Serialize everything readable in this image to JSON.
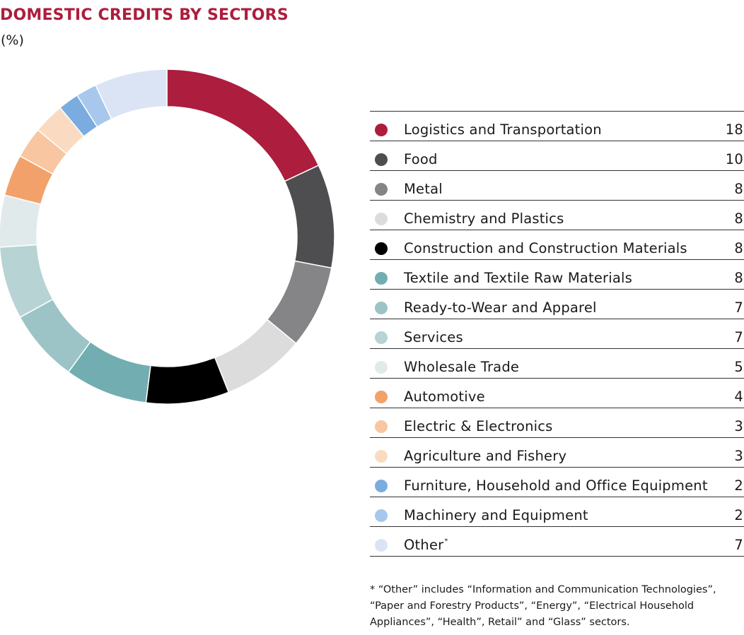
{
  "chart_data": {
    "type": "pie",
    "title": "DOMESTIC CREDITS BY SECTORS",
    "unit_label": "(%)",
    "categories": [
      "Logistics and Transportation",
      "Food",
      "Metal",
      "Chemistry and Plastics",
      "Construction and Construction Materials",
      "Textile and Textile Raw Materials",
      "Ready-to-Wear and Apparel",
      "Services",
      "Wholesale Trade",
      "Automotive",
      "Electric & Electronics",
      "Agriculture and Fishery",
      "Furniture, Household and Office Equipment",
      "Machinery and Equipment",
      "Other"
    ],
    "values": [
      18,
      10,
      8,
      8,
      8,
      8,
      7,
      7,
      5,
      4,
      3,
      3,
      2,
      2,
      7
    ],
    "colors": [
      "#ad1d3d",
      "#4e4e50",
      "#858587",
      "#dcdcdd",
      "#000000",
      "#72aeb1",
      "#9cc3c6",
      "#b7d3d4",
      "#e1eaeb",
      "#f2a16b",
      "#f8c6a0",
      "#fadbc2",
      "#7aace0",
      "#a8c7ec",
      "#dae4f5"
    ],
    "superscripts": [
      "",
      "",
      "",
      "",
      "",
      "",
      "",
      "",
      "",
      "",
      "",
      "",
      "",
      "",
      "*"
    ],
    "footnote": "* “Other” includes “Information and Communication Technologies”, “Paper and Forestry Products”, “Energy”, “Electrical Household Appliances”, “Health”, Retail” and “Glass” sectors."
  }
}
